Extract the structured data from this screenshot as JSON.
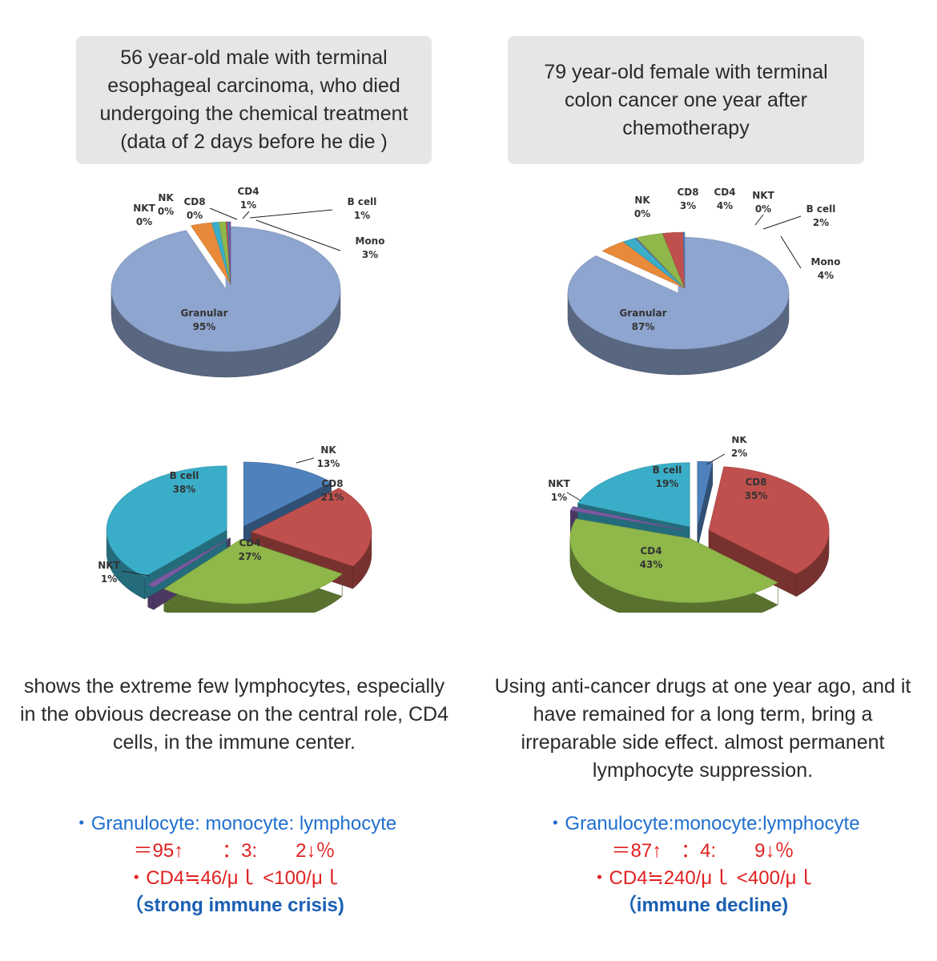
{
  "panels": [
    {
      "title": "56 year-old male with terminal esophageal carcinoma, who died undergoing the chemical treatment (data of 2 days before he die )",
      "description": "shows the extreme few lymphocytes, especially in the obvious decrease on the central role, CD4 cells, in the immune center.",
      "ratio_label": "・Granulocyte: monocyte: lymphocyte",
      "ratio_values": "＝95↑　　：3:　　2↓％",
      "cd4_line": "・CD4≒46/μｌ <100/μｌ",
      "verdict": "（strong immune crisis)"
    },
    {
      "title": "79 year-old female with terminal colon cancer one year after chemotherapy",
      "description": "Using anti-cancer drugs at one year ago, and it have remained for a long term, bring a irreparable side effect. almost permanent lymphocyte suppression.",
      "ratio_label": "・Granulocyte:monocyte:lymphocyte",
      "ratio_values": "＝87↑　：4:　　9↓％",
      "cd4_line": "・CD4≒240/μｌ <400/μｌ",
      "verdict": "（immune decline)"
    }
  ],
  "colors": {
    "Granular": "#8ea5cf",
    "Mono": "#e98a3a",
    "B cell": "#3aaec8",
    "CD4": "#8fb74a",
    "CD8": "#c0504d",
    "NK": "#4f81bd",
    "NKT": "#7a5aa0",
    "cd4_highlight": "#d01c1c",
    "blue_text": "#1f6fcf",
    "red_text": "#e02020"
  },
  "chart_data": [
    {
      "type": "pie",
      "title": "",
      "slices": [
        {
          "label": "Granular",
          "value": 95
        },
        {
          "label": "Mono",
          "value": 3
        },
        {
          "label": "B cell",
          "value": 1
        },
        {
          "label": "CD4",
          "value": 1
        },
        {
          "label": "CD8",
          "value": 0
        },
        {
          "label": "NK",
          "value": 0
        },
        {
          "label": "NKT",
          "value": 0
        }
      ]
    },
    {
      "type": "pie",
      "title": "",
      "slices": [
        {
          "label": "Granular",
          "value": 87
        },
        {
          "label": "Mono",
          "value": 4
        },
        {
          "label": "B cell",
          "value": 2
        },
        {
          "label": "NKT",
          "value": 0
        },
        {
          "label": "CD4",
          "value": 4
        },
        {
          "label": "CD8",
          "value": 3
        },
        {
          "label": "NK",
          "value": 0
        }
      ]
    },
    {
      "type": "pie",
      "title": "",
      "slices": [
        {
          "label": "NK",
          "value": 13
        },
        {
          "label": "CD8",
          "value": 21
        },
        {
          "label": "CD4",
          "value": 27
        },
        {
          "label": "NKT",
          "value": 1
        },
        {
          "label": "B cell",
          "value": 38
        }
      ]
    },
    {
      "type": "pie",
      "title": "",
      "slices": [
        {
          "label": "NK",
          "value": 2
        },
        {
          "label": "CD8",
          "value": 35
        },
        {
          "label": "CD4",
          "value": 43
        },
        {
          "label": "NKT",
          "value": 1
        },
        {
          "label": "B cell",
          "value": 19
        }
      ]
    }
  ]
}
